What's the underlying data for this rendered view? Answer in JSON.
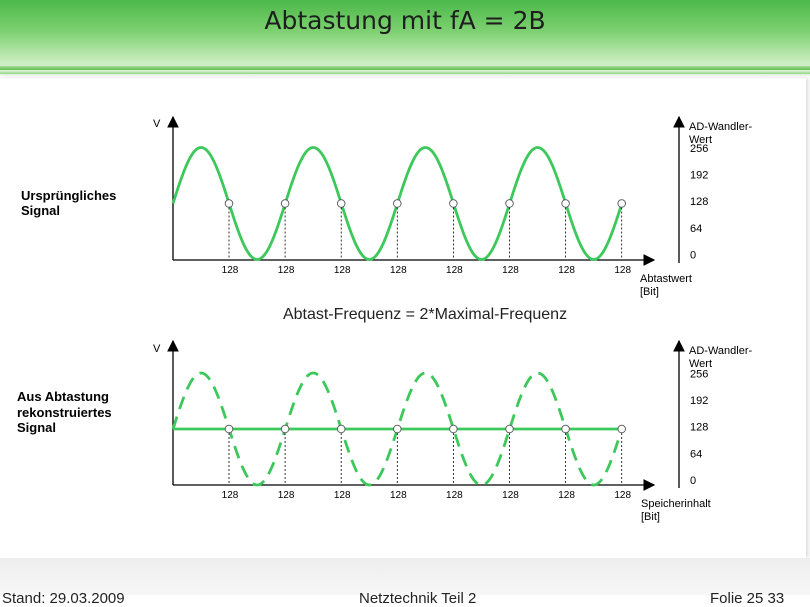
{
  "header": {
    "title": "Abtastung mit fA = 2B"
  },
  "top_panel": {
    "side_label_line1": "Ursprüngliches",
    "side_label_line2": "Signal",
    "y_axis_label": "V",
    "x_axis_label_line1": "Abtastwert",
    "x_axis_label_line2": "[Bit]",
    "right_axis_title_line1": "AD-Wandler-",
    "right_axis_title_line2": "Wert",
    "right_axis_ticks": [
      "256",
      "192",
      "128",
      "64",
      "0"
    ],
    "sample_labels": [
      "128",
      "128",
      "128",
      "128",
      "128",
      "128",
      "128",
      "128"
    ]
  },
  "middle_caption": "Abtast-Frequenz = 2*Maximal-Frequenz",
  "bottom_panel": {
    "side_label_line1": "Aus Abtastung",
    "side_label_line2": "rekonstruiertes",
    "side_label_line3": "Signal",
    "y_axis_label": "V",
    "x_axis_label_line1": "Speicherinhalt",
    "x_axis_label_line2": "[Bit]",
    "right_axis_title_line1": "AD-Wandler-",
    "right_axis_title_line2": "Wert",
    "right_axis_ticks": [
      "256",
      "192",
      "128",
      "64",
      "0"
    ],
    "sample_labels": [
      "128",
      "128",
      "128",
      "128",
      "128",
      "128",
      "128",
      "128"
    ]
  },
  "footer": {
    "left": "Stand: 29.03.2009",
    "center": "Netztechnik Teil 2",
    "right": "Folie 25 33"
  },
  "colors": {
    "signal": "#3cc85a",
    "axis": "#000000",
    "header_green": "#5dbf52"
  }
}
